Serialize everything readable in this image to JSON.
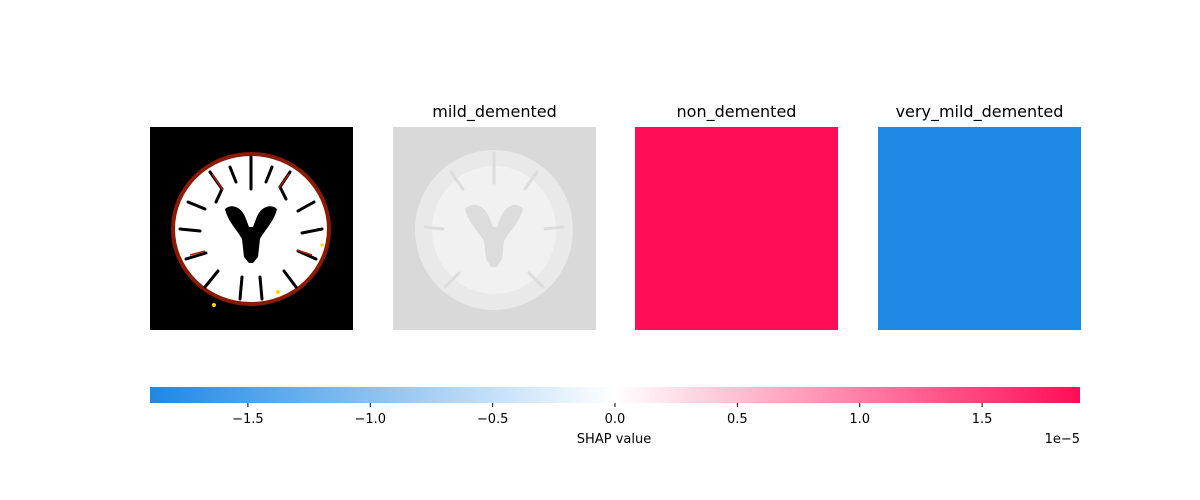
{
  "chart_data": {
    "type": "heatmap",
    "panels": [
      {
        "title": "",
        "content": "original brain MRI slice, inverted/thresholded (black background, white tissue, dark-red edges)"
      },
      {
        "title": "mild_demented",
        "content": "faded grayscale brain MRI slice with near-zero SHAP overlay",
        "mean_shap_value": 0.0
      },
      {
        "title": "non_demented",
        "content": "uniform SHAP attribution",
        "mean_shap_value": 1.9e-05,
        "color": "#ff0d57"
      },
      {
        "title": "very_mild_demented",
        "content": "uniform SHAP attribution",
        "mean_shap_value": -1.9e-05,
        "color": "#1e88e5"
      }
    ],
    "colorbar": {
      "label": "SHAP value",
      "range": [
        -1.9,
        1.9
      ],
      "ticks": [
        -1.5,
        -1.0,
        -0.5,
        0.0,
        0.5,
        1.0,
        1.5
      ],
      "tick_labels": [
        "−1.5",
        "−1.0",
        "−0.5",
        "0.0",
        "0.5",
        "1.0",
        "1.5"
      ],
      "offset_text": "1e−5",
      "negative_color": "#1e88e5",
      "zero_color": "#ffffff",
      "positive_color": "#ff0d57"
    }
  }
}
